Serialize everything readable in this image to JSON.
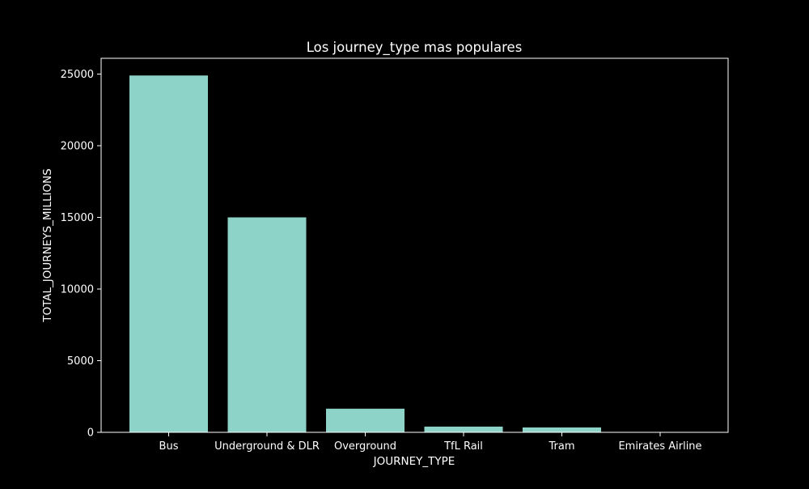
{
  "chart_data": {
    "type": "bar",
    "title": "Los journey_type mas populares",
    "xlabel": "JOURNEY_TYPE",
    "ylabel": "TOTAL_JOURNEYS_MILLIONS",
    "categories": [
      "Bus",
      "Underground & DLR",
      "Overground",
      "TfL Rail",
      "Tram",
      "Emirates Airline"
    ],
    "values": [
      24900,
      15000,
      1650,
      400,
      340,
      10
    ],
    "ylim": [
      0,
      26000
    ],
    "yticks": [
      0,
      5000,
      10000,
      15000,
      20000,
      25000
    ],
    "grid": false,
    "legend": "none"
  },
  "colors": {
    "background": "#000000",
    "bar": "#8dd3c7",
    "axis": "#ffffff",
    "text": "#ffffff"
  }
}
